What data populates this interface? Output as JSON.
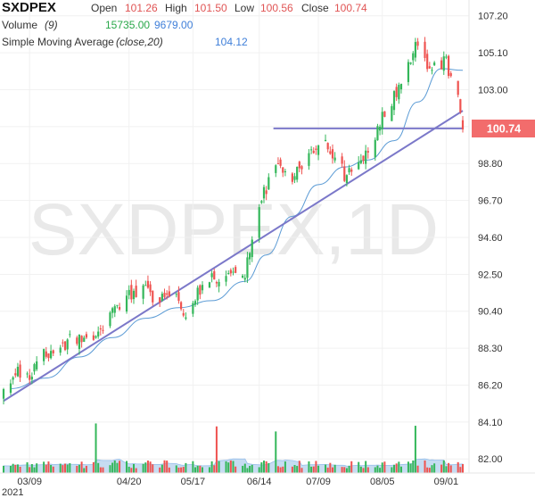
{
  "legend": {
    "symbol": "SXDPEX",
    "open_label": "Open",
    "open": "101.26",
    "high_label": "High",
    "high": "101.50",
    "low_label": "Low",
    "low": "100.56",
    "close_label": "Close",
    "close": "100.74",
    "volume_label": "Volume",
    "volume_param": "(9)",
    "volume_value": "15735.00",
    "volume_ma": "9679.00",
    "sma_label": "Simple Moving Average",
    "sma_param": "(close,20)",
    "sma_value": "104.12"
  },
  "watermark": "SXDPEX,1D",
  "price_badge": "100.74",
  "colors": {
    "up": "#34b75a",
    "down": "#ef5350",
    "sma": "#5b9bd5",
    "trendline": "#7b78c9",
    "volume_area": "#b9d4f0"
  },
  "chart_data": {
    "type": "candlestick",
    "y_ticks": [
      107.2,
      105.1,
      103.0,
      100.9,
      98.8,
      96.7,
      94.6,
      92.5,
      90.4,
      88.3,
      86.2,
      84.1,
      82.0
    ],
    "y_tick_labels": [
      "107.20",
      "105.10",
      "103.00",
      "",
      "98.80",
      "96.70",
      "94.60",
      "92.50",
      "90.40",
      "88.30",
      "86.20",
      "84.10",
      "82.00"
    ],
    "ylim": [
      81.2,
      108.1
    ],
    "x_labels": [
      {
        "date": "2021-03-09",
        "label": "03/09",
        "sublabel": "2021"
      },
      {
        "date": "2021-04-20",
        "label": "04/20"
      },
      {
        "date": "2021-05-17",
        "label": "05/17"
      },
      {
        "date": "2021-06-14",
        "label": "06/14"
      },
      {
        "date": "2021-07-09",
        "label": "07/09"
      },
      {
        "date": "2021-08-05",
        "label": "08/05"
      },
      {
        "date": "2021-09-01",
        "label": "09/01"
      }
    ],
    "date_range": [
      "2021-02-26",
      "2021-09-08"
    ],
    "last_close": 100.74,
    "trendlines": [
      {
        "from": {
          "date": "2021-02-26",
          "value": 85.3
        },
        "to": {
          "date": "2021-09-08",
          "value": 101.8
        }
      },
      {
        "from": {
          "date": "2021-06-20",
          "value": 100.8
        },
        "to": {
          "date": "2021-09-08",
          "value": 100.8
        }
      }
    ],
    "close_path": [
      [
        "2021-02-26",
        85.8
      ],
      [
        "2021-03-03",
        87.0
      ],
      [
        "2021-03-09",
        86.8
      ],
      [
        "2021-03-15",
        87.9
      ],
      [
        "2021-03-22",
        88.5
      ],
      [
        "2021-03-29",
        88.8
      ],
      [
        "2021-04-06",
        89.2
      ],
      [
        "2021-04-13",
        90.4
      ],
      [
        "2021-04-20",
        91.2
      ],
      [
        "2021-04-26",
        91.6
      ],
      [
        "2021-05-03",
        90.9
      ],
      [
        "2021-05-10",
        91.4
      ],
      [
        "2021-05-14",
        90.3
      ],
      [
        "2021-05-20",
        91.6
      ],
      [
        "2021-05-27",
        92.4
      ],
      [
        "2021-06-03",
        93.0
      ],
      [
        "2021-06-08",
        92.6
      ],
      [
        "2021-06-11",
        94.2
      ],
      [
        "2021-06-16",
        97.1
      ],
      [
        "2021-06-21",
        98.5
      ],
      [
        "2021-06-28",
        97.7
      ],
      [
        "2021-07-02",
        98.9
      ],
      [
        "2021-07-07",
        99.5
      ],
      [
        "2021-07-12",
        100.2
      ],
      [
        "2021-07-15",
        99.3
      ],
      [
        "2021-07-20",
        98.2
      ],
      [
        "2021-07-26",
        98.9
      ],
      [
        "2021-07-30",
        99.3
      ],
      [
        "2021-08-04",
        101.1
      ],
      [
        "2021-08-10",
        102.6
      ],
      [
        "2021-08-16",
        104.5
      ],
      [
        "2021-08-19",
        105.9
      ],
      [
        "2021-08-24",
        104.6
      ],
      [
        "2021-08-27",
        104.3
      ],
      [
        "2021-09-01",
        104.8
      ],
      [
        "2021-09-03",
        103.6
      ],
      [
        "2021-09-06",
        102.4
      ],
      [
        "2021-09-08",
        100.74
      ]
    ],
    "sma_path": [
      [
        "2021-03-01",
        86.0
      ],
      [
        "2021-03-16",
        86.6
      ],
      [
        "2021-03-30",
        87.8
      ],
      [
        "2021-04-13",
        88.9
      ],
      [
        "2021-04-27",
        90.0
      ],
      [
        "2021-05-11",
        90.6
      ],
      [
        "2021-05-25",
        91.0
      ],
      [
        "2021-06-08",
        92.1
      ],
      [
        "2021-06-17",
        93.6
      ],
      [
        "2021-06-28",
        95.8
      ],
      [
        "2021-07-09",
        97.6
      ],
      [
        "2021-07-20",
        98.6
      ],
      [
        "2021-07-30",
        99.0
      ],
      [
        "2021-08-10",
        100.1
      ],
      [
        "2021-08-20",
        102.3
      ],
      [
        "2021-08-30",
        104.2
      ],
      [
        "2021-09-08",
        104.1
      ]
    ],
    "volume_spikes": [
      {
        "date": "2021-04-06",
        "value": 15735
      },
      {
        "date": "2021-05-27",
        "value": 14800
      },
      {
        "date": "2021-06-21",
        "value": 13200
      },
      {
        "date": "2021-08-19",
        "value": 15000
      }
    ],
    "volume_base": 2800,
    "volume_max": 17000
  }
}
